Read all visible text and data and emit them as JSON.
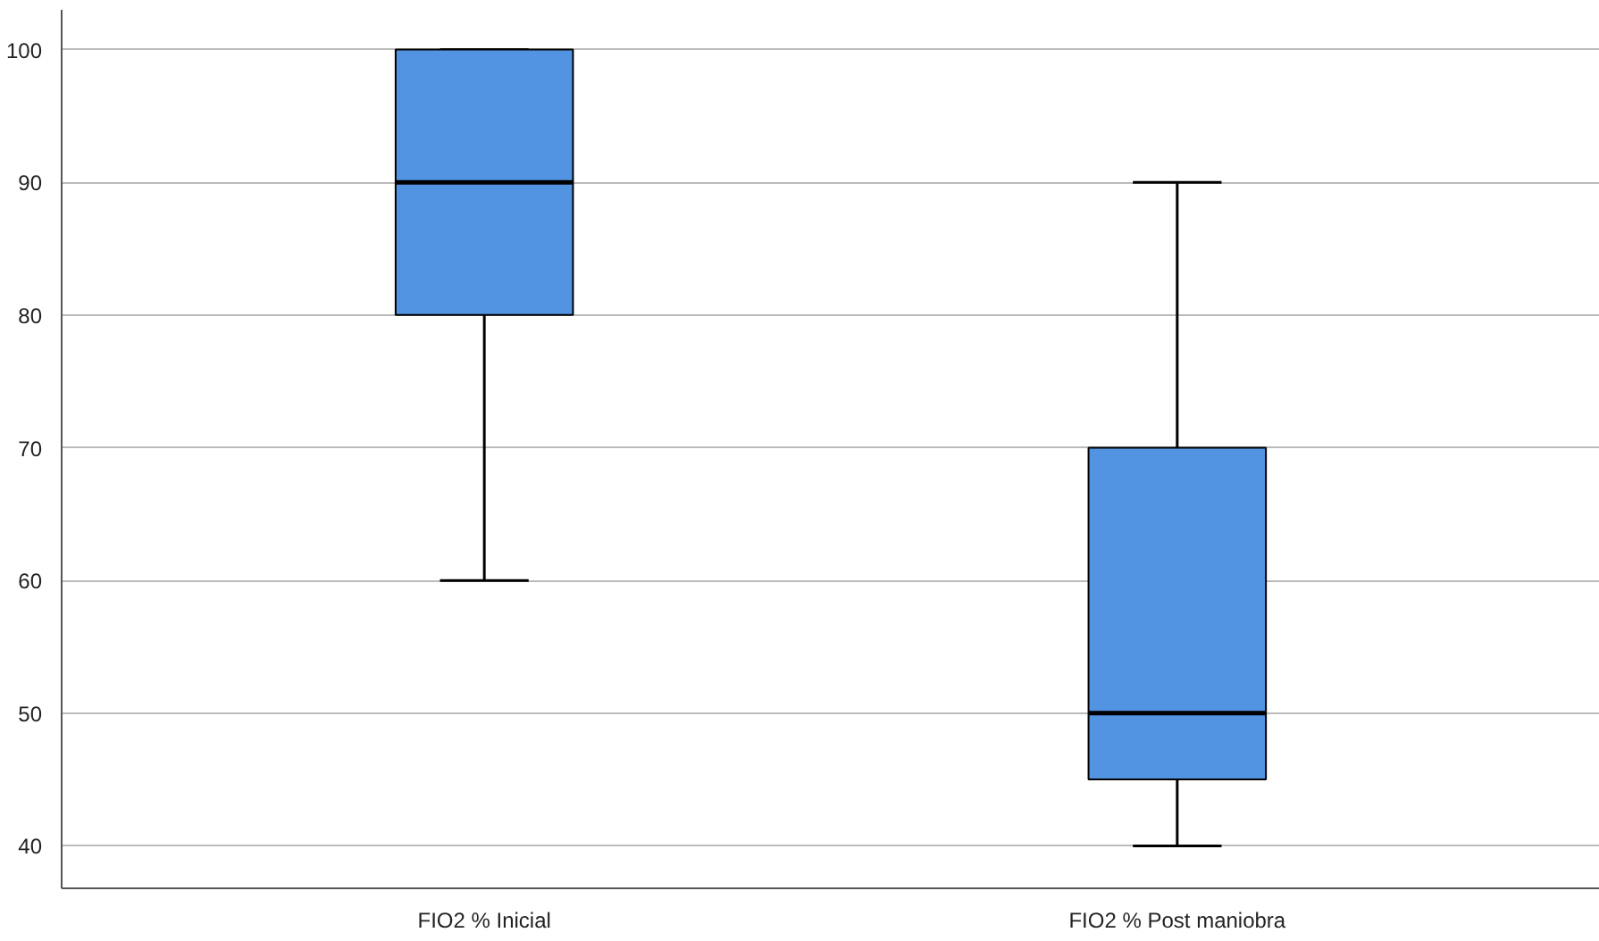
{
  "chart_data": {
    "type": "box",
    "categories": [
      "FIO2 % Inicial",
      "FIO2 % Post maniobra"
    ],
    "boxes": [
      {
        "low": 60,
        "q1": 80,
        "median": 90,
        "q3": 100,
        "high": 100
      },
      {
        "low": 40,
        "q1": 45,
        "median": 50,
        "q3": 70,
        "high": 90
      }
    ],
    "color": "#5294e2",
    "ylim": [
      36.8,
      103
    ],
    "yticks": [
      40,
      50,
      60,
      70,
      80,
      90,
      100
    ],
    "grid": "y"
  }
}
